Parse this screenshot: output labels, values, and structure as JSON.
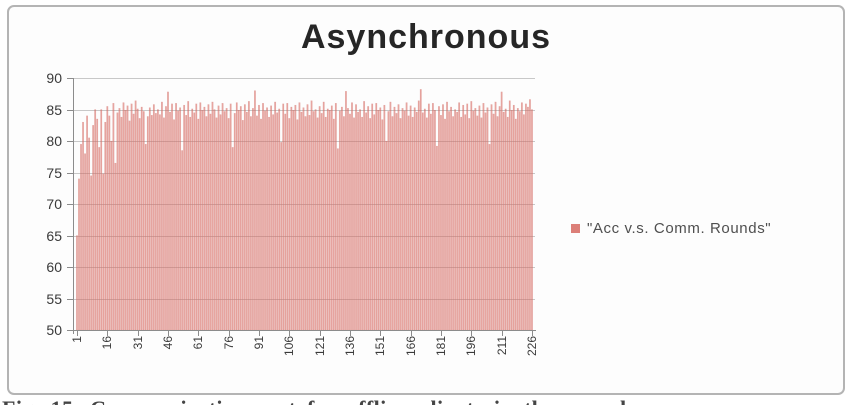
{
  "legend": {
    "label": "\"Acc v.s. Comm. Rounds\""
  },
  "caption": {
    "text": "Fig. 15. Communication cost for offline clients in the asynchronous"
  },
  "chart_data": {
    "type": "bar",
    "title": "Asynchronous",
    "xlabel": "",
    "ylabel": "",
    "ylim": [
      50,
      90
    ],
    "y_ticks": [
      50,
      55,
      60,
      65,
      70,
      75,
      80,
      85,
      90
    ],
    "x_tick_labels": [
      "1",
      "16",
      "31",
      "46",
      "61",
      "76",
      "91",
      "106",
      "121",
      "136",
      "151",
      "166",
      "181",
      "196",
      "211",
      "226"
    ],
    "x_range": [
      1,
      226
    ],
    "grid": true,
    "legend_position": "right",
    "series": [
      {
        "name": "\"Acc v.s. Comm. Rounds\"",
        "values": [
          65.0,
          74.0,
          79.5,
          83.0,
          78.0,
          84.0,
          80.5,
          74.5,
          82.5,
          85.0,
          83.5,
          79.0,
          85.0,
          74.8,
          83.0,
          85.5,
          84.0,
          80.0,
          86.0,
          76.5,
          84.5,
          85.2,
          83.8,
          86.1,
          84.9,
          85.6,
          83.2,
          85.9,
          84.3,
          86.4,
          85.1,
          83.6,
          85.4,
          84.7,
          79.5,
          83.9,
          85.3,
          84.1,
          85.8,
          84.4,
          85.0,
          84.2,
          86.2,
          83.7,
          85.5,
          87.8,
          84.6,
          85.9,
          83.4,
          86.0,
          84.8,
          85.3,
          78.5,
          85.7,
          84.1,
          86.3,
          83.8,
          85.1,
          84.5,
          85.9,
          83.5,
          86.1,
          84.9,
          85.4,
          83.9,
          85.8,
          84.3,
          86.2,
          85.0,
          83.7,
          85.6,
          84.2,
          86.0,
          84.7,
          85.2,
          83.6,
          85.9,
          79.0,
          84.4,
          86.1,
          84.9,
          85.5,
          83.3,
          85.8,
          84.6,
          86.3,
          83.9,
          85.2,
          88.0,
          84.0,
          85.7,
          83.5,
          86.0,
          84.8,
          85.3,
          83.8,
          85.6,
          84.2,
          86.2,
          84.5,
          85.1,
          79.8,
          85.9,
          84.3,
          86.0,
          83.6,
          85.4,
          84.9,
          85.7,
          83.4,
          86.1,
          84.6,
          85.3,
          83.9,
          85.8,
          84.1,
          86.4,
          84.7,
          85.0,
          83.7,
          85.5,
          84.4,
          86.2,
          83.8,
          85.1,
          84.9,
          85.6,
          83.5,
          86.0,
          78.8,
          84.8,
          85.4,
          83.9,
          87.9,
          85.2,
          84.3,
          86.1,
          83.7,
          85.8,
          84.6,
          85.0,
          83.8,
          86.3,
          84.5,
          85.5,
          83.6,
          85.9,
          84.2,
          86.0,
          84.9,
          85.3,
          83.4,
          85.7,
          80.0,
          84.7,
          86.2,
          83.9,
          85.4,
          84.4,
          85.8,
          83.6,
          85.2,
          84.8,
          86.1,
          84.0,
          85.6,
          83.8,
          85.3,
          84.6,
          86.4,
          88.2,
          84.5,
          85.1,
          83.7,
          85.9,
          84.3,
          86.0,
          84.9,
          79.2,
          85.5,
          84.1,
          85.8,
          83.5,
          86.2,
          84.7,
          85.4,
          83.9,
          85.0,
          84.6,
          86.1,
          83.8,
          85.7,
          84.2,
          85.9,
          83.6,
          86.3,
          84.8,
          85.2,
          84.0,
          85.6,
          83.7,
          86.0,
          84.5,
          85.3,
          79.5,
          85.8,
          84.3,
          86.2,
          83.9,
          85.5,
          87.8,
          84.6,
          85.1,
          83.8,
          86.4,
          84.9,
          85.7,
          83.5,
          85.2,
          84.7,
          86.1,
          84.2,
          85.9,
          85.4,
          86.6,
          85.0
        ]
      }
    ],
    "bar_fill": "rgba(217,106,98,0.60)",
    "bar_stroke": "rgba(192,80,77,0.30)",
    "legend_marker_color": "#dc7f78",
    "gridline_color": "#b5b5b5",
    "axis_color": "#8c8c8c"
  }
}
